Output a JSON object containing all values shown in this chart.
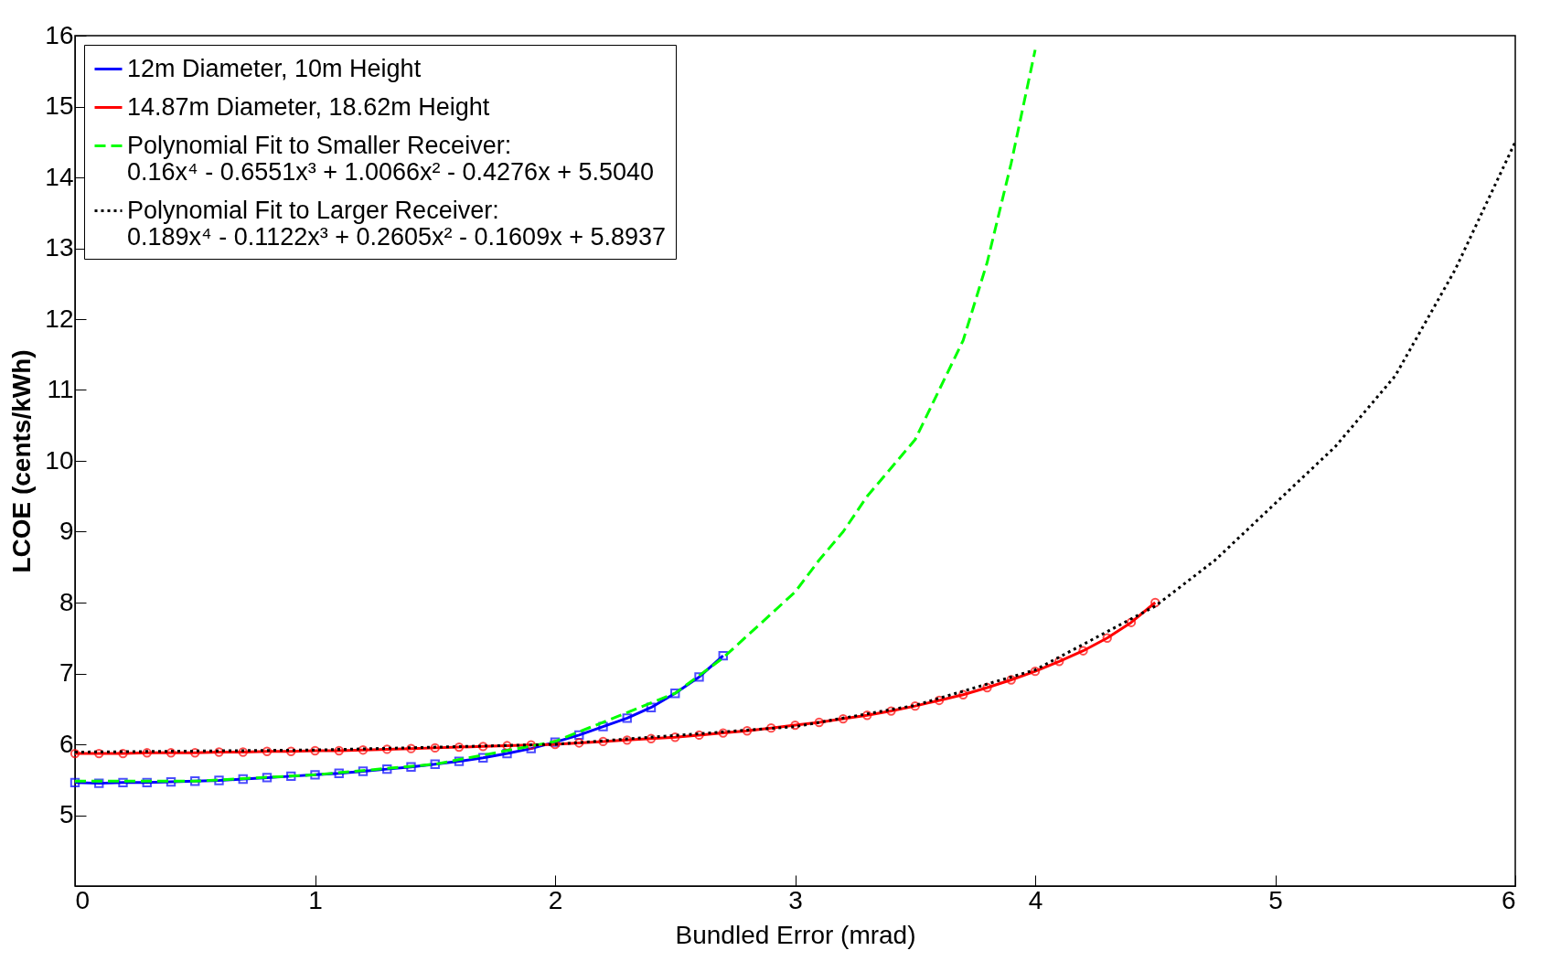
{
  "chart_data": {
    "type": "line",
    "xlabel": "Bundled Error (mrad)",
    "ylabel": "LCOE (cents/kWh)",
    "xlim": [
      0,
      6
    ],
    "ylim": [
      4,
      16
    ],
    "xticks": [
      0,
      1,
      2,
      3,
      4,
      5,
      6
    ],
    "yticks": [
      5,
      6,
      7,
      8,
      9,
      10,
      11,
      12,
      13,
      14,
      15,
      16
    ],
    "grid": false,
    "legend": "top left",
    "series": [
      {
        "name": "12m Diameter, 10m Height",
        "color": "#0000ff",
        "marker": "square",
        "line_style": "solid",
        "x": [
          0,
          0.1,
          0.2,
          0.3,
          0.4,
          0.5,
          0.6,
          0.7,
          0.8,
          0.9,
          1.0,
          1.1,
          1.2,
          1.3,
          1.4,
          1.5,
          1.6,
          1.7,
          1.8,
          1.9,
          2.0,
          2.1,
          2.2,
          2.3,
          2.4,
          2.5,
          2.6,
          2.7
        ],
        "values": [
          5.46,
          5.45,
          5.46,
          5.46,
          5.47,
          5.48,
          5.49,
          5.51,
          5.53,
          5.55,
          5.57,
          5.59,
          5.62,
          5.65,
          5.68,
          5.72,
          5.76,
          5.81,
          5.87,
          5.94,
          6.03,
          6.13,
          6.25,
          6.37,
          6.52,
          6.72,
          6.95,
          7.25
        ]
      },
      {
        "name": "14.87m Diameter, 18.62m Height",
        "color": "#ff0000",
        "marker": "circle",
        "line_style": "solid",
        "x": [
          0,
          0.1,
          0.2,
          0.3,
          0.4,
          0.5,
          0.6,
          0.7,
          0.8,
          0.9,
          1.0,
          1.1,
          1.2,
          1.3,
          1.4,
          1.5,
          1.6,
          1.7,
          1.8,
          1.9,
          2.0,
          2.1,
          2.2,
          2.3,
          2.4,
          2.5,
          2.6,
          2.7,
          2.8,
          2.9,
          3.0,
          3.1,
          3.2,
          3.3,
          3.4,
          3.5,
          3.6,
          3.7,
          3.8,
          3.9,
          4.0,
          4.1,
          4.2,
          4.3,
          4.4,
          4.5
        ],
        "values": [
          5.87,
          5.87,
          5.87,
          5.88,
          5.88,
          5.88,
          5.89,
          5.89,
          5.9,
          5.9,
          5.91,
          5.91,
          5.92,
          5.93,
          5.94,
          5.95,
          5.96,
          5.97,
          5.98,
          5.99,
          6.0,
          6.02,
          6.04,
          6.06,
          6.08,
          6.1,
          6.13,
          6.16,
          6.19,
          6.23,
          6.27,
          6.31,
          6.36,
          6.41,
          6.47,
          6.54,
          6.62,
          6.7,
          6.8,
          6.91,
          7.03,
          7.17,
          7.32,
          7.5,
          7.72,
          8.0
        ]
      },
      {
        "name": "Polynomial Fit to Smaller Receiver: 0.16x⁴ - 0.6551x³ + 1.0066x² - 0.4276x + 5.5040",
        "color": "#00ff00",
        "marker": "none",
        "line_style": "dashed",
        "x": [
          0,
          0.5,
          1.0,
          1.5,
          2.0,
          2.5,
          2.7,
          3.0,
          3.1,
          3.2,
          3.3,
          3.4,
          3.5,
          3.6,
          3.7,
          3.8,
          3.9,
          4.0
        ],
        "values": [
          5.48,
          5.48,
          5.57,
          5.72,
          6.04,
          6.72,
          7.22,
          8.15,
          8.6,
          9.0,
          9.5,
          9.9,
          10.3,
          11.0,
          11.7,
          12.8,
          14.2,
          15.8
        ]
      },
      {
        "name": "Polynomial Fit to Larger Receiver: 0.189x⁴ - 0.1122x³ + 0.2605x² - 0.1609x + 5.8937",
        "color": "#000000",
        "marker": "none",
        "line_style": "dotted",
        "x": [
          0,
          1,
          2,
          3,
          3.5,
          4,
          4.5,
          4.75,
          5,
          5.25,
          5.5,
          5.75,
          6
        ],
        "values": [
          5.89,
          5.92,
          6.0,
          6.25,
          6.55,
          7.05,
          7.95,
          8.6,
          9.4,
          10.2,
          11.2,
          12.7,
          14.5
        ]
      }
    ]
  }
}
